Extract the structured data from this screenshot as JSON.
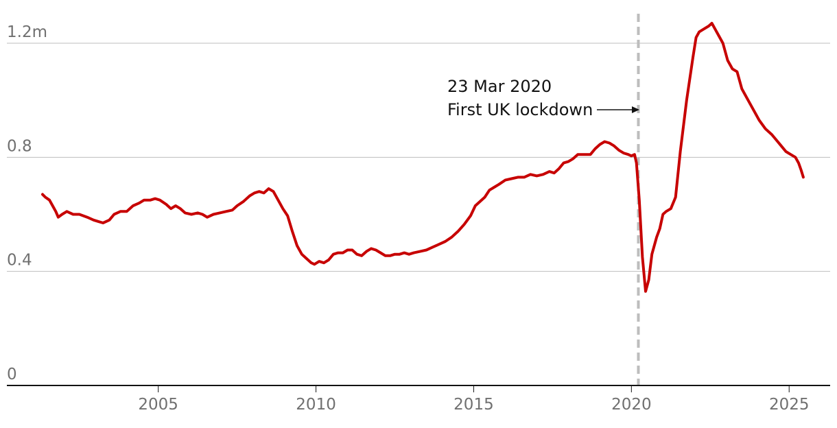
{
  "chart_data": {
    "type": "line",
    "title": "",
    "xlabel": "",
    "ylabel": "",
    "xlim": [
      2000.2,
      2026.3
    ],
    "ylim": [
      0,
      1.2
    ],
    "y_ticks": [
      {
        "value": 0,
        "label": "0"
      },
      {
        "value": 0.4,
        "label": "0.4"
      },
      {
        "value": 0.8,
        "label": "0.8"
      },
      {
        "value": 1.2,
        "label": "1.2m"
      }
    ],
    "x_ticks": [
      {
        "value": 2005,
        "label": "2005"
      },
      {
        "value": 2010,
        "label": "2010"
      },
      {
        "value": 2015,
        "label": "2015"
      },
      {
        "value": 2020,
        "label": "2020"
      },
      {
        "value": 2025,
        "label": "2025"
      }
    ],
    "grid": true,
    "line_color": "#c70000",
    "gridline_color": "#bdbdbd",
    "marker_color": "#bdbdbd",
    "annotation": {
      "x": 2020.22,
      "date_label": "23 Mar 2020",
      "event_label": "First UK lockdown"
    },
    "series": [
      {
        "points": [
          [
            2001.33,
            0.67
          ],
          [
            2001.42,
            0.66
          ],
          [
            2001.55,
            0.65
          ],
          [
            2001.65,
            0.63
          ],
          [
            2001.75,
            0.61
          ],
          [
            2001.83,
            0.59
          ],
          [
            2001.95,
            0.6
          ],
          [
            2002.1,
            0.61
          ],
          [
            2002.3,
            0.6
          ],
          [
            2002.5,
            0.6
          ],
          [
            2002.75,
            0.59
          ],
          [
            2002.95,
            0.58
          ],
          [
            2003.1,
            0.575
          ],
          [
            2003.25,
            0.57
          ],
          [
            2003.45,
            0.58
          ],
          [
            2003.6,
            0.6
          ],
          [
            2003.8,
            0.61
          ],
          [
            2004.0,
            0.61
          ],
          [
            2004.2,
            0.63
          ],
          [
            2004.4,
            0.64
          ],
          [
            2004.55,
            0.65
          ],
          [
            2004.75,
            0.65
          ],
          [
            2004.9,
            0.655
          ],
          [
            2005.05,
            0.65
          ],
          [
            2005.25,
            0.635
          ],
          [
            2005.4,
            0.62
          ],
          [
            2005.55,
            0.63
          ],
          [
            2005.7,
            0.62
          ],
          [
            2005.85,
            0.605
          ],
          [
            2006.05,
            0.6
          ],
          [
            2006.25,
            0.605
          ],
          [
            2006.4,
            0.6
          ],
          [
            2006.55,
            0.59
          ],
          [
            2006.75,
            0.6
          ],
          [
            2006.95,
            0.605
          ],
          [
            2007.15,
            0.61
          ],
          [
            2007.35,
            0.615
          ],
          [
            2007.5,
            0.63
          ],
          [
            2007.7,
            0.645
          ],
          [
            2007.9,
            0.665
          ],
          [
            2008.05,
            0.675
          ],
          [
            2008.2,
            0.68
          ],
          [
            2008.35,
            0.675
          ],
          [
            2008.5,
            0.69
          ],
          [
            2008.65,
            0.68
          ],
          [
            2008.8,
            0.65
          ],
          [
            2008.95,
            0.62
          ],
          [
            2009.1,
            0.595
          ],
          [
            2009.25,
            0.54
          ],
          [
            2009.4,
            0.49
          ],
          [
            2009.55,
            0.46
          ],
          [
            2009.7,
            0.445
          ],
          [
            2009.85,
            0.43
          ],
          [
            2009.95,
            0.425
          ],
          [
            2010.1,
            0.435
          ],
          [
            2010.25,
            0.43
          ],
          [
            2010.4,
            0.44
          ],
          [
            2010.55,
            0.46
          ],
          [
            2010.7,
            0.465
          ],
          [
            2010.85,
            0.465
          ],
          [
            2011.0,
            0.475
          ],
          [
            2011.15,
            0.475
          ],
          [
            2011.3,
            0.46
          ],
          [
            2011.45,
            0.455
          ],
          [
            2011.6,
            0.47
          ],
          [
            2011.75,
            0.48
          ],
          [
            2011.9,
            0.475
          ],
          [
            2012.05,
            0.465
          ],
          [
            2012.2,
            0.455
          ],
          [
            2012.35,
            0.455
          ],
          [
            2012.5,
            0.46
          ],
          [
            2012.65,
            0.46
          ],
          [
            2012.8,
            0.465
          ],
          [
            2012.95,
            0.46
          ],
          [
            2013.1,
            0.465
          ],
          [
            2013.3,
            0.47
          ],
          [
            2013.5,
            0.475
          ],
          [
            2013.7,
            0.485
          ],
          [
            2013.9,
            0.495
          ],
          [
            2014.1,
            0.505
          ],
          [
            2014.3,
            0.52
          ],
          [
            2014.5,
            0.54
          ],
          [
            2014.7,
            0.565
          ],
          [
            2014.9,
            0.595
          ],
          [
            2015.05,
            0.63
          ],
          [
            2015.2,
            0.645
          ],
          [
            2015.35,
            0.66
          ],
          [
            2015.5,
            0.685
          ],
          [
            2015.65,
            0.695
          ],
          [
            2015.8,
            0.705
          ],
          [
            2016.0,
            0.72
          ],
          [
            2016.2,
            0.725
          ],
          [
            2016.4,
            0.73
          ],
          [
            2016.6,
            0.73
          ],
          [
            2016.8,
            0.74
          ],
          [
            2017.0,
            0.735
          ],
          [
            2017.2,
            0.74
          ],
          [
            2017.4,
            0.75
          ],
          [
            2017.55,
            0.745
          ],
          [
            2017.7,
            0.76
          ],
          [
            2017.85,
            0.78
          ],
          [
            2018.0,
            0.785
          ],
          [
            2018.15,
            0.795
          ],
          [
            2018.3,
            0.81
          ],
          [
            2018.5,
            0.81
          ],
          [
            2018.7,
            0.81
          ],
          [
            2018.85,
            0.83
          ],
          [
            2019.0,
            0.845
          ],
          [
            2019.15,
            0.855
          ],
          [
            2019.3,
            0.85
          ],
          [
            2019.45,
            0.84
          ],
          [
            2019.6,
            0.825
          ],
          [
            2019.75,
            0.815
          ],
          [
            2019.9,
            0.81
          ],
          [
            2020.0,
            0.805
          ],
          [
            2020.1,
            0.81
          ],
          [
            2020.16,
            0.78
          ],
          [
            2020.25,
            0.65
          ],
          [
            2020.35,
            0.45
          ],
          [
            2020.45,
            0.33
          ],
          [
            2020.55,
            0.37
          ],
          [
            2020.65,
            0.46
          ],
          [
            2020.8,
            0.52
          ],
          [
            2020.9,
            0.55
          ],
          [
            2021.0,
            0.6
          ],
          [
            2021.1,
            0.61
          ],
          [
            2021.25,
            0.62
          ],
          [
            2021.4,
            0.66
          ],
          [
            2021.55,
            0.82
          ],
          [
            2021.75,
            1.0
          ],
          [
            2021.95,
            1.15
          ],
          [
            2022.05,
            1.22
          ],
          [
            2022.15,
            1.24
          ],
          [
            2022.3,
            1.25
          ],
          [
            2022.45,
            1.26
          ],
          [
            2022.55,
            1.27
          ],
          [
            2022.65,
            1.25
          ],
          [
            2022.75,
            1.23
          ],
          [
            2022.9,
            1.2
          ],
          [
            2023.05,
            1.14
          ],
          [
            2023.2,
            1.11
          ],
          [
            2023.35,
            1.1
          ],
          [
            2023.5,
            1.04
          ],
          [
            2023.7,
            1.0
          ],
          [
            2023.9,
            0.96
          ],
          [
            2024.05,
            0.93
          ],
          [
            2024.25,
            0.9
          ],
          [
            2024.45,
            0.88
          ],
          [
            2024.6,
            0.86
          ],
          [
            2024.75,
            0.84
          ],
          [
            2024.9,
            0.82
          ],
          [
            2025.05,
            0.81
          ],
          [
            2025.2,
            0.8
          ],
          [
            2025.3,
            0.78
          ],
          [
            2025.38,
            0.755
          ],
          [
            2025.45,
            0.73
          ]
        ]
      }
    ]
  }
}
